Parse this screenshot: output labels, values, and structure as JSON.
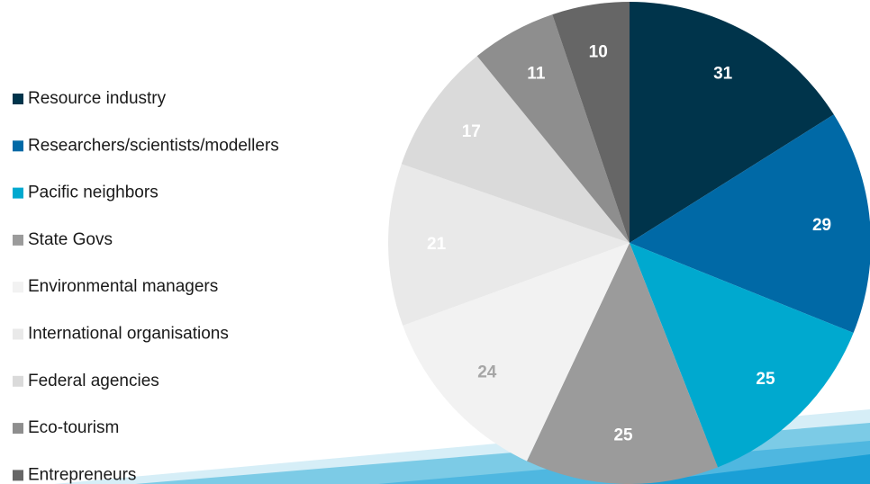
{
  "chart_data": {
    "type": "pie",
    "categories": [
      "Resource industry",
      "Researchers/scientists/modellers",
      "Pacific neighbors",
      "State Govs",
      "Environmental managers",
      "International organisations",
      "Federal agencies",
      "Eco-tourism",
      "Entrepreneurs"
    ],
    "values": [
      31,
      29,
      25,
      25,
      24,
      21,
      17,
      11,
      10
    ],
    "colors": [
      "#00344b",
      "#0069a6",
      "#00a9cf",
      "#9b9b9b",
      "#f2f2f2",
      "#e9e9e9",
      "#dadada",
      "#8e8e8e",
      "#666666"
    ],
    "label_colors": [
      "#ffffff",
      "#ffffff",
      "#ffffff",
      "#ffffff",
      "#a6a6a6",
      "#ffffff",
      "#ffffff",
      "#ffffff",
      "#ffffff"
    ],
    "legend": "left"
  }
}
